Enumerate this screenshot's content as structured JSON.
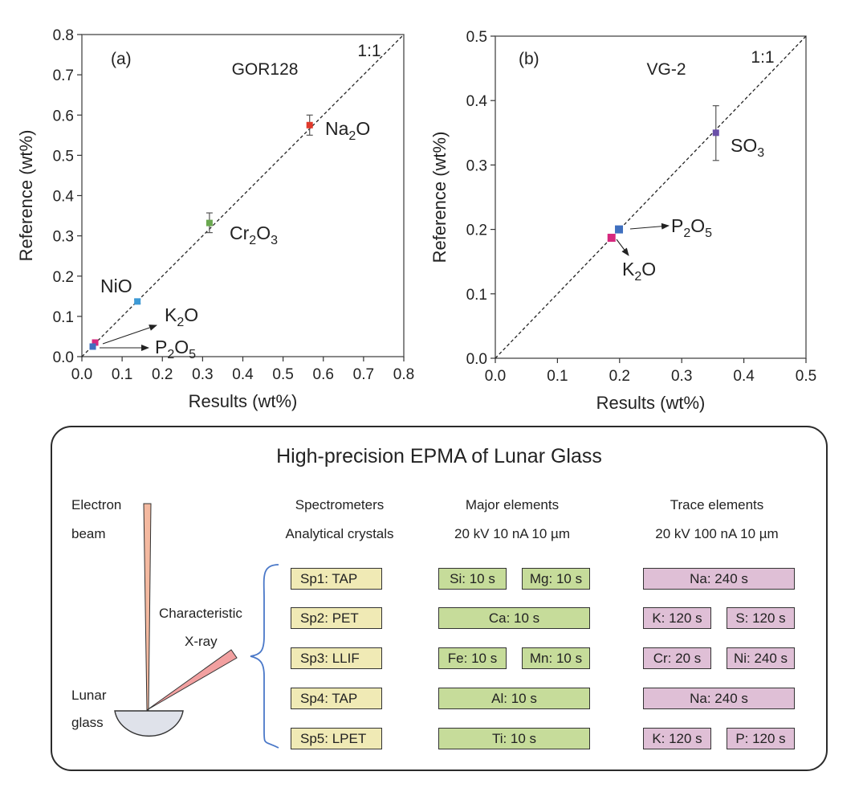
{
  "chart_data": [
    {
      "type": "scatter",
      "panel_label": "(a)",
      "title": "GOR128",
      "annotation": "1:1",
      "xlabel": "Results (wt%)",
      "ylabel": "Reference (wt%)",
      "xlim": [
        0.0,
        0.8
      ],
      "ylim": [
        0.0,
        0.8
      ],
      "xticks": [
        "0.0",
        "0.1",
        "0.2",
        "0.3",
        "0.4",
        "0.5",
        "0.6",
        "0.7",
        "0.8"
      ],
      "yticks": [
        "0.0",
        "0.1",
        "0.2",
        "0.3",
        "0.4",
        "0.5",
        "0.6",
        "0.7",
        "0.8"
      ],
      "grid": false,
      "reference_line": "y = x (dashed)",
      "points": [
        {
          "name": "Na2O",
          "base": "Na",
          "sub1": "2",
          "mid": "O",
          "sub2": "",
          "x": 0.566,
          "y": 0.575,
          "yerr_low": 0.55,
          "yerr_high": 0.6,
          "color": "#e0392b"
        },
        {
          "name": "Cr2O3",
          "base": "Cr",
          "sub1": "2",
          "mid": "O",
          "sub2": "3",
          "x": 0.317,
          "y": 0.332,
          "yerr_low": 0.308,
          "yerr_high": 0.357,
          "color": "#6aa84f"
        },
        {
          "name": "NiO",
          "base": "NiO",
          "sub1": "",
          "mid": "",
          "sub2": "",
          "x": 0.138,
          "y": 0.137,
          "yerr_low": 0.132,
          "yerr_high": 0.142,
          "color": "#3d9ad6"
        },
        {
          "name": "K2O",
          "base": "K",
          "sub1": "2",
          "mid": "O",
          "sub2": "",
          "x": 0.033,
          "y": 0.035,
          "yerr_low": 0.035,
          "yerr_high": 0.035,
          "color": "#d6287e"
        },
        {
          "name": "P2O5",
          "base": "P",
          "sub1": "2",
          "mid": "O",
          "sub2": "5",
          "x": 0.027,
          "y": 0.025,
          "yerr_low": 0.025,
          "yerr_high": 0.025,
          "color": "#3f6fbf"
        }
      ]
    },
    {
      "type": "scatter",
      "panel_label": "(b)",
      "title": "VG-2",
      "annotation": "1:1",
      "xlabel": "Results (wt%)",
      "ylabel": "Reference (wt%)",
      "xlim": [
        0.0,
        0.5
      ],
      "ylim": [
        0.0,
        0.5
      ],
      "xticks": [
        "0.0",
        "0.1",
        "0.2",
        "0.3",
        "0.4",
        "0.5"
      ],
      "yticks": [
        "0.0",
        "0.1",
        "0.2",
        "0.3",
        "0.4",
        "0.5"
      ],
      "grid": false,
      "reference_line": "y = x (dashed)",
      "points": [
        {
          "name": "SO3",
          "base": "SO",
          "sub1": "3",
          "mid": "",
          "sub2": "",
          "x": 0.355,
          "y": 0.35,
          "yerr_low": 0.307,
          "yerr_high": 0.392,
          "color": "#6a4fa8"
        },
        {
          "name": "P2O5",
          "base": "P",
          "sub1": "2",
          "mid": "O",
          "sub2": "5",
          "x": 0.199,
          "y": 0.2,
          "yerr_low": 0.2,
          "yerr_high": 0.2,
          "color": "#3f6fbf"
        },
        {
          "name": "K2O",
          "base": "K",
          "sub1": "2",
          "mid": "O",
          "sub2": "",
          "x": 0.187,
          "y": 0.187,
          "yerr_low": 0.187,
          "yerr_high": 0.187,
          "color": "#d6287e"
        }
      ]
    }
  ],
  "diagram": {
    "title": "High-precision EPMA of Lunar Glass",
    "labels": {
      "electron": "Electron",
      "beam": "beam",
      "characteristic": "Characteristic",
      "xray": "X-ray",
      "lunar": "Lunar",
      "glass": "glass"
    },
    "columns": {
      "spec_h1": "Spectrometers",
      "spec_h2": "Analytical crystals",
      "major_h1": "Major elements",
      "major_h2": "20 kV 10 nA 10 µm",
      "trace_h1": "Trace elements",
      "trace_h2": "20 kV 100 nA 10 µm"
    },
    "spectrometers": [
      "Sp1:  TAP",
      "Sp2:  PET",
      "Sp3:  LLIF",
      "Sp4: TAP",
      "Sp5: LPET"
    ],
    "major": [
      [
        "Si: 10 s",
        "Mg: 10 s"
      ],
      [
        "Ca: 10 s"
      ],
      [
        "Fe: 10 s",
        "Mn: 10 s"
      ],
      [
        "Al: 10 s"
      ],
      [
        "Ti: 10 s"
      ]
    ],
    "trace": [
      [
        "Na:  240 s"
      ],
      [
        "K: 120 s",
        "S: 120 s"
      ],
      [
        "Cr: 20 s",
        "Ni: 240 s"
      ],
      [
        "Na:  240 s"
      ],
      [
        "K: 120 s",
        "P: 120 s"
      ]
    ],
    "colors": {
      "spectrometer_fill": "#f0eab5",
      "major_fill": "#c6dc9a",
      "trace_fill": "#dfbfd6",
      "beam_fill": "#f4b9a0",
      "xray_fill": "#f2a0a0",
      "glass_fill": "#dfe2ea",
      "brace": "#4a78c8"
    }
  }
}
